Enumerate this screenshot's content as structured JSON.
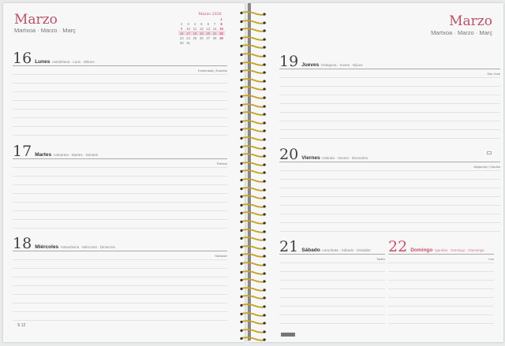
{
  "left": {
    "month": "Marzo",
    "month_sub": "Martxoa · Marzo · Març",
    "mini_calendar": {
      "title": "Marzo 2026",
      "highlight_week": [
        "16",
        "17",
        "18",
        "19",
        "20",
        "21",
        "22"
      ],
      "weeks": [
        [
          "",
          "",
          "",
          "",
          "",
          "",
          "1"
        ],
        [
          "2",
          "3",
          "4",
          "5",
          "6",
          "7",
          "8"
        ],
        [
          "9",
          "10",
          "11",
          "12",
          "13",
          "14",
          "15"
        ],
        [
          "16",
          "17",
          "18",
          "19",
          "20",
          "21",
          "22"
        ],
        [
          "23",
          "24",
          "25",
          "26",
          "27",
          "28",
          "29"
        ],
        [
          "30",
          "31",
          "",
          "",
          "",
          "",
          ""
        ]
      ]
    },
    "days": [
      {
        "num": "16",
        "name": "Lunes",
        "alt": "· Astelehena · Luns · Dilluns",
        "saint": "Esmeralda | Eusebio"
      },
      {
        "num": "17",
        "name": "Martes",
        "alt": "· Asteartea · Martes · Dimarts",
        "saint": "Patricio"
      },
      {
        "num": "18",
        "name": "Miércoles",
        "alt": "· Asteazkena · Mércores · Dimecres",
        "saint": "Salvador"
      }
    ],
    "footer": "S 12"
  },
  "right": {
    "month": "Marzo",
    "month_sub": "Martxoa · Marzo · Març",
    "days": [
      {
        "num": "19",
        "name": "Jueves",
        "alt": "· Osteguna · Xoves · Dijous",
        "saint": "San José"
      },
      {
        "num": "20",
        "name": "Viernes",
        "alt": "· Ostirala · Venres · Divendres",
        "saint": "Alejandra | Claudio"
      },
      {
        "num": "21",
        "name": "Sábado",
        "alt": "· Larunbata · Sábado · Dissabte",
        "saint": "Tadeo"
      },
      {
        "num": "22",
        "name": "Domingo",
        "alt": "· Igandea · Domingo · Diumenge",
        "saint": "Leo"
      }
    ],
    "brand_logo": "Finocam"
  },
  "colors": {
    "accent": "#c9506c",
    "spiral": "#c9a227"
  }
}
